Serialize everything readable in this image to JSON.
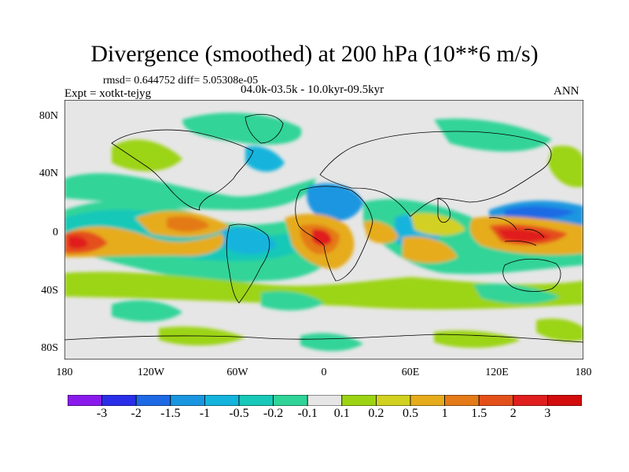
{
  "title": "Divergence (smoothed) at 200 hPa (10**6 m/s)",
  "stats": {
    "rmsd_line": "rmsd= 0.644752  diff= 5.05308e-05"
  },
  "experiment": "Expt = xotkt-tejyg",
  "period": "04.0k-03.5k - 10.0kyr-09.5kyr",
  "season": "ANN",
  "map": {
    "projection": "cylindrical equidistant",
    "lat_ticks": [
      "80N",
      "40N",
      "0",
      "40S",
      "80S"
    ],
    "lon_ticks": [
      "180",
      "120W",
      "60W",
      "0",
      "60E",
      "120E",
      "180"
    ]
  },
  "colorbar": {
    "labels": [
      "-3",
      "-2",
      "-1.5",
      "-1",
      "-0.5",
      "-0.2",
      "-0.1",
      "0.1",
      "0.2",
      "0.5",
      "1",
      "1.5",
      "2",
      "3"
    ],
    "colors": [
      "#8a1aec",
      "#2a2ee8",
      "#1e6ae4",
      "#1a96e0",
      "#14b4dc",
      "#18c8b8",
      "#30d498",
      "#e6e6e6",
      "#9cd414",
      "#d2d020",
      "#e6ac1c",
      "#e47a18",
      "#e4501a",
      "#e01e1e",
      "#d20c0c"
    ]
  }
}
